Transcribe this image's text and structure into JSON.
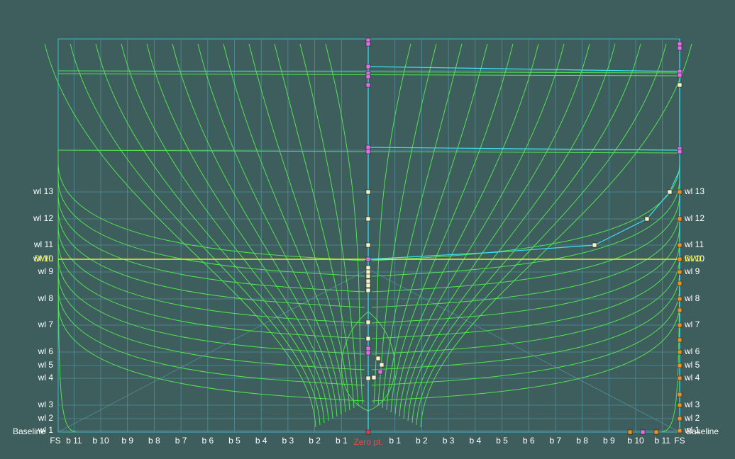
{
  "waterlines": [
    "wl 1",
    "wl 2",
    "wl 3",
    "wl 4",
    "wl 5",
    "wl 6",
    "wl 7",
    "wl 8",
    "wl 9",
    "wl 10",
    "wl 11",
    "wl 12",
    "wl 13"
  ],
  "dwl": "DWL",
  "buttocks": [
    "b 1",
    "b 2",
    "b 3",
    "b 4",
    "b 5",
    "b 6",
    "b 7",
    "b 8",
    "b 9",
    "b 10",
    "b 11"
  ],
  "frame_station": "FS",
  "zero_point": "Zero pt.",
  "baseline": "Baseline"
}
